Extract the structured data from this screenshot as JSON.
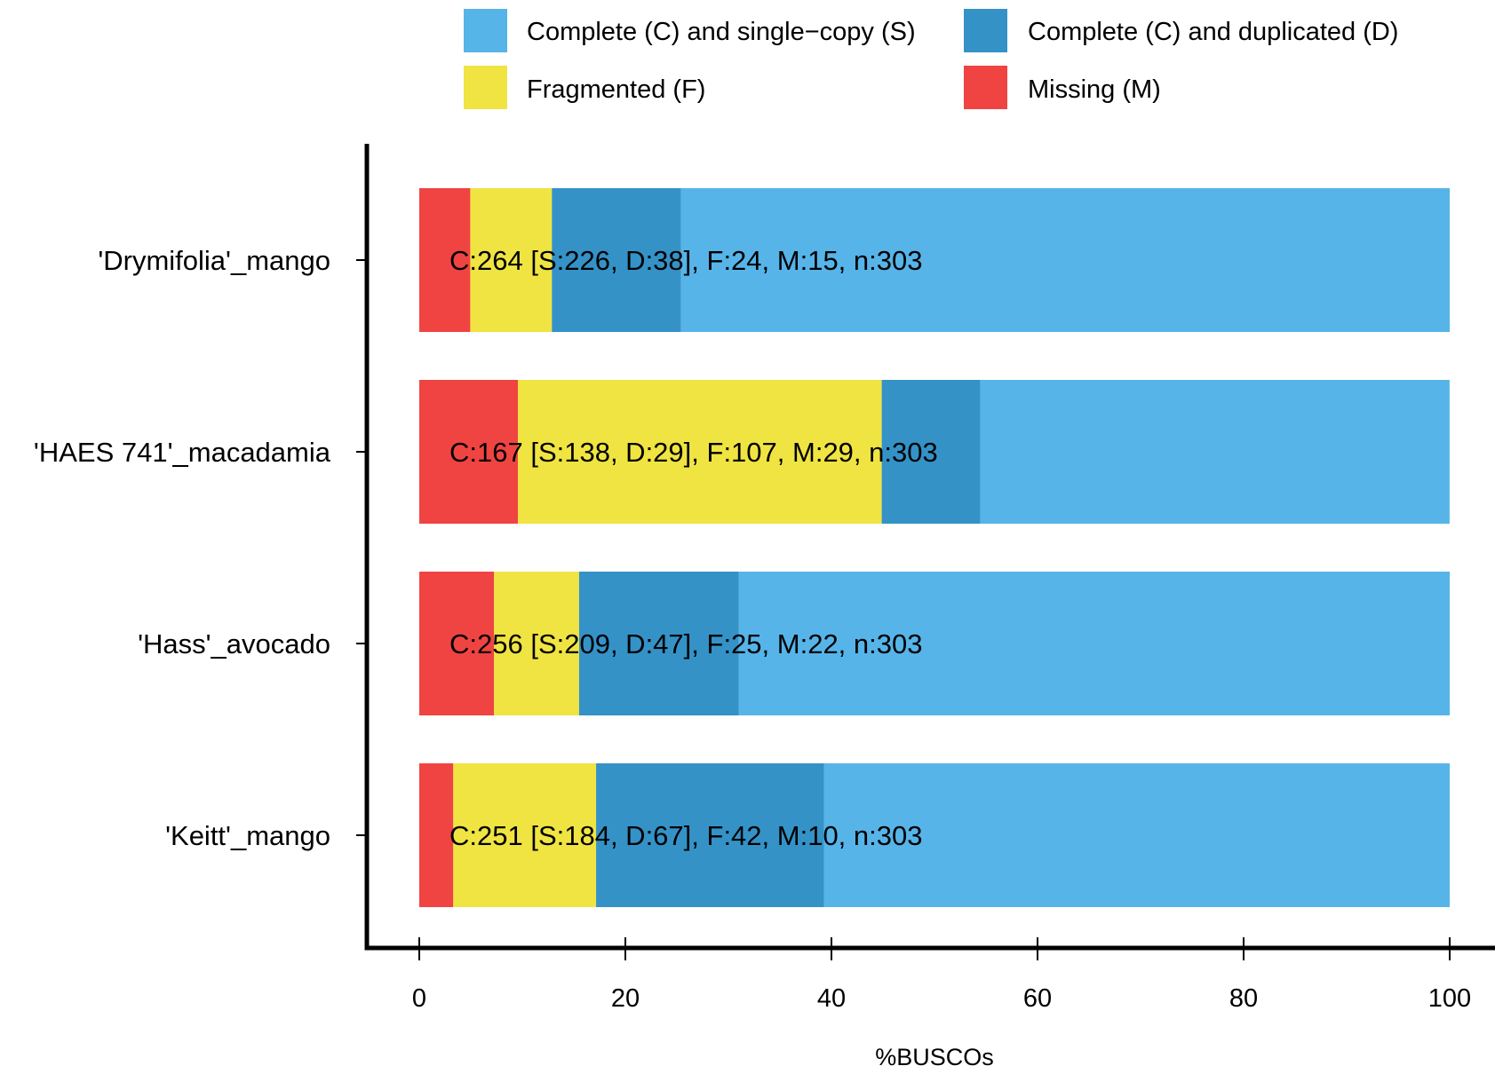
{
  "chart_data": {
    "type": "bar",
    "orientation": "horizontal",
    "stacked": true,
    "xlabel": "%BUSCOs",
    "xlim": [
      0,
      100
    ],
    "xticks": [
      0,
      20,
      40,
      60,
      80,
      100
    ],
    "legend_position": "top",
    "legend": [
      {
        "key": "S",
        "label": "Complete (C) and single−copy (S)",
        "color": "#56b4e9"
      },
      {
        "key": "D",
        "label": "Complete (C) and duplicated (D)",
        "color": "#3492c7"
      },
      {
        "key": "F",
        "label": "Fragmented (F)",
        "color": "#f0e442"
      },
      {
        "key": "M",
        "label": "Missing (M)",
        "color": "#f04442"
      }
    ],
    "stack_order": [
      "M",
      "F",
      "D",
      "S"
    ],
    "categories": [
      "'Drymifolia'_mango",
      "'HAES 741'_macadamia",
      "'Hass'_avocado",
      "'Keitt'_mango"
    ],
    "series": [
      {
        "key": "M",
        "values": [
          4.95,
          9.57,
          7.26,
          3.3
        ]
      },
      {
        "key": "F",
        "values": [
          7.92,
          35.31,
          8.25,
          13.86
        ]
      },
      {
        "key": "D",
        "values": [
          12.54,
          9.57,
          15.51,
          22.11
        ]
      },
      {
        "key": "S",
        "values": [
          74.59,
          45.54,
          68.98,
          60.73
        ]
      }
    ],
    "bar_labels": [
      "C:264 [S:226, D:38], F:24, M:15, n:303",
      "C:167 [S:138, D:29], F:107, M:29, n:303",
      "C:256 [S:209, D:47], F:25, M:22, n:303",
      "C:251 [S:184, D:67], F:42, M:10, n:303"
    ]
  }
}
